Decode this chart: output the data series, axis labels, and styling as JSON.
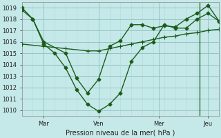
{
  "xlabel": "Pression niveau de la mer( hPa )",
  "background_color": "#c5e8e8",
  "grid_color_major": "#8fbfbf",
  "grid_color_minor": "#b0d8d8",
  "line_color": "#1a5c1a",
  "ylim": [
    1009.5,
    1019.5
  ],
  "xlim": [
    0,
    7.2
  ],
  "yticks": [
    1010,
    1011,
    1012,
    1013,
    1014,
    1015,
    1016,
    1017,
    1018,
    1019
  ],
  "xtick_positions": [
    0.8,
    2.8,
    5.0,
    6.8
  ],
  "xtick_labels": [
    "Mar",
    "Ven",
    "Mer",
    "Jeu"
  ],
  "series1_x": [
    0.0,
    0.4,
    0.8,
    1.2,
    1.6,
    2.0,
    2.4,
    2.8,
    3.2,
    3.6,
    4.0,
    4.4,
    4.8,
    5.2,
    5.6,
    6.0,
    6.4,
    6.8,
    7.2
  ],
  "series1_y": [
    1018.8,
    1018.0,
    1015.8,
    1015.0,
    1013.7,
    1011.8,
    1010.5,
    1009.9,
    1010.5,
    1011.5,
    1014.3,
    1015.5,
    1016.0,
    1017.5,
    1017.2,
    1017.2,
    1018.0,
    1018.5,
    1017.8
  ],
  "series2_x": [
    0.0,
    0.8,
    1.6,
    2.4,
    2.8,
    3.2,
    3.6,
    4.0,
    4.4,
    4.8,
    5.2,
    5.6,
    6.0,
    6.4,
    6.8,
    7.2
  ],
  "series2_y": [
    1015.8,
    1015.6,
    1015.4,
    1015.2,
    1015.2,
    1015.4,
    1015.6,
    1015.8,
    1016.0,
    1016.2,
    1016.4,
    1016.5,
    1016.7,
    1016.8,
    1017.0,
    1017.1
  ],
  "series3_x": [
    0.0,
    0.4,
    0.8,
    1.6,
    2.0,
    2.4,
    2.8,
    3.2,
    3.6,
    4.0,
    4.4,
    4.8,
    5.2,
    5.6,
    6.0,
    6.4,
    6.8,
    7.2
  ],
  "series3_y": [
    1019.0,
    1018.0,
    1016.0,
    1015.0,
    1012.8,
    1011.5,
    1012.7,
    1015.6,
    1016.1,
    1017.5,
    1017.5,
    1017.2,
    1017.4,
    1017.3,
    1018.0,
    1018.5,
    1019.2,
    1017.8
  ],
  "vline_x": 6.5,
  "marker_size": 2.5,
  "line_width": 1.0
}
